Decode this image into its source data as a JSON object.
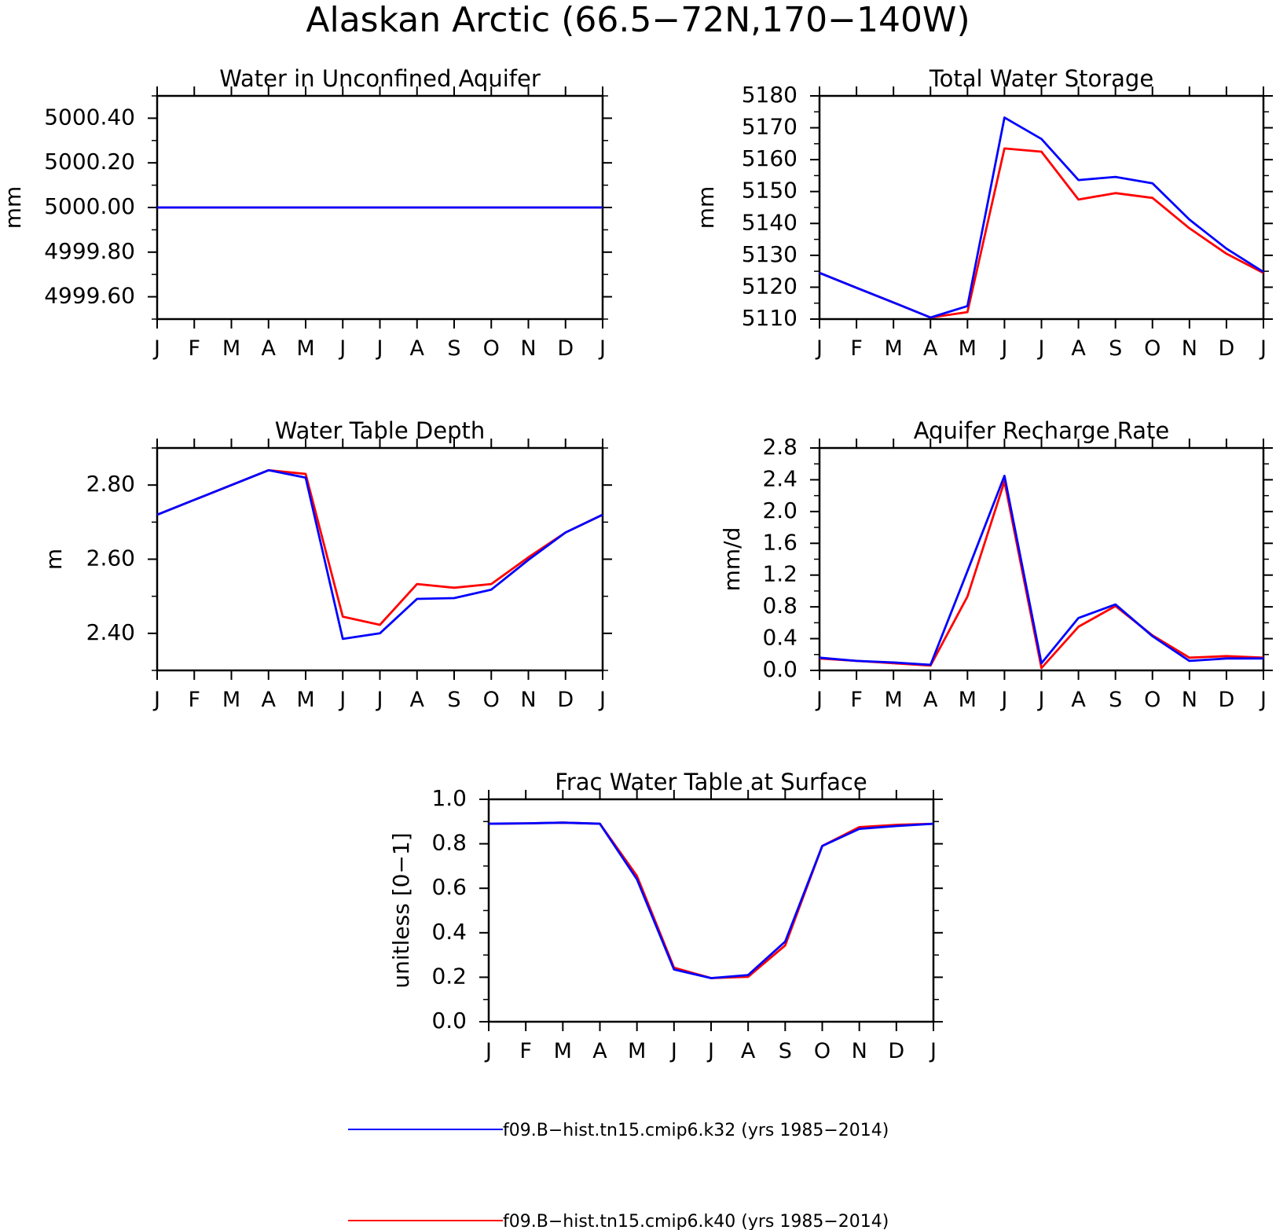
{
  "figure": {
    "title": "Alaskan Arctic (66.5−72N,170−140W)"
  },
  "legend": [
    {
      "label": "f09.B−hist.tn15.cmip6.k32 (yrs 1985−2014)",
      "color": "#0000ff"
    },
    {
      "label": "f09.B−hist.tn15.cmip6.k40 (yrs 1985−2014)",
      "color": "#ff0000"
    }
  ],
  "chart_data": [
    {
      "type": "line",
      "title": "Water in Unconfined Aquifer",
      "ylabel": "mm",
      "xlabel": "",
      "categories": [
        "J",
        "F",
        "M",
        "A",
        "M",
        "J",
        "J",
        "A",
        "S",
        "O",
        "N",
        "D",
        "J"
      ],
      "ylim": [
        4999.5,
        5000.5
      ],
      "yticks": [
        4999.6,
        4999.8,
        5000.0,
        5000.2,
        5000.4
      ],
      "ytick_labels": [
        "4999.60",
        "4999.80",
        "5000.00",
        "5000.20",
        "5000.40"
      ],
      "series": [
        {
          "name": "f09.B−hist.tn15.cmip6.k40 (yrs 1985−2014)",
          "color": "#ff0000",
          "values": [
            5000,
            5000,
            5000,
            5000,
            5000,
            5000,
            5000,
            5000,
            5000,
            5000,
            5000,
            5000,
            5000
          ]
        },
        {
          "name": "f09.B−hist.tn15.cmip6.k32 (yrs 1985−2014)",
          "color": "#0000ff",
          "values": [
            5000,
            5000,
            5000,
            5000,
            5000,
            5000,
            5000,
            5000,
            5000,
            5000,
            5000,
            5000,
            5000
          ]
        }
      ]
    },
    {
      "type": "line",
      "title": "Total Water Storage",
      "ylabel": "mm",
      "xlabel": "",
      "categories": [
        "J",
        "F",
        "M",
        "A",
        "M",
        "J",
        "J",
        "A",
        "S",
        "O",
        "N",
        "D",
        "J"
      ],
      "ylim": [
        5110,
        5180
      ],
      "yticks": [
        5110,
        5120,
        5130,
        5140,
        5150,
        5160,
        5170,
        5180
      ],
      "ytick_labels": [
        "5110",
        "5120",
        "5130",
        "5140",
        "5150",
        "5160",
        "5170",
        "5180"
      ],
      "series": [
        {
          "name": "f09.B−hist.tn15.cmip6.k40 (yrs 1985−2014)",
          "color": "#ff0000",
          "values": [
            5124.5,
            5119.8,
            5115.2,
            5110.5,
            5112.2,
            5163.5,
            5162.5,
            5147.5,
            5149.5,
            5148,
            5138.5,
            5130.5,
            5124.5
          ]
        },
        {
          "name": "f09.B−hist.tn15.cmip6.k32 (yrs 1985−2014)",
          "color": "#0000ff",
          "values": [
            5124.5,
            5119.8,
            5115.2,
            5110.5,
            5114.1,
            5173.2,
            5166.5,
            5153.6,
            5154.6,
            5152.6,
            5141.2,
            5132.1,
            5124.8
          ]
        }
      ]
    },
    {
      "type": "line",
      "title": "Water Table Depth",
      "ylabel": "m",
      "xlabel": "",
      "categories": [
        "J",
        "F",
        "M",
        "A",
        "M",
        "J",
        "J",
        "A",
        "S",
        "O",
        "N",
        "D",
        "J"
      ],
      "ylim": [
        2.3,
        2.9
      ],
      "yticks": [
        2.4,
        2.6,
        2.8
      ],
      "ytick_labels": [
        "2.40",
        "2.60",
        "2.80"
      ],
      "series": [
        {
          "name": "f09.B−hist.tn15.cmip6.k40 (yrs 1985−2014)",
          "color": "#ff0000",
          "values": [
            2.72,
            2.76,
            2.8,
            2.84,
            2.83,
            2.445,
            2.423,
            2.533,
            2.523,
            2.533,
            2.605,
            2.672,
            2.72
          ]
        },
        {
          "name": "f09.B−hist.tn15.cmip6.k32 (yrs 1985−2014)",
          "color": "#0000ff",
          "values": [
            2.72,
            2.76,
            2.8,
            2.84,
            2.82,
            2.385,
            2.4,
            2.493,
            2.495,
            2.518,
            2.598,
            2.672,
            2.72
          ]
        }
      ]
    },
    {
      "type": "line",
      "title": "Aquifer Recharge Rate",
      "ylabel": "mm/d",
      "xlabel": "",
      "categories": [
        "J",
        "F",
        "M",
        "A",
        "M",
        "J",
        "J",
        "A",
        "S",
        "O",
        "N",
        "D",
        "J"
      ],
      "ylim": [
        0.0,
        2.8
      ],
      "yticks": [
        0.0,
        0.4,
        0.8,
        1.2,
        1.6,
        2.0,
        2.4,
        2.8
      ],
      "ytick_labels": [
        "0.0",
        "0.4",
        "0.8",
        "1.2",
        "1.6",
        "2.0",
        "2.4",
        "2.8"
      ],
      "series": [
        {
          "name": "f09.B−hist.tn15.cmip6.k40 (yrs 1985−2014)",
          "color": "#ff0000",
          "values": [
            0.15,
            0.12,
            0.09,
            0.06,
            0.93,
            2.38,
            0.03,
            0.55,
            0.81,
            0.44,
            0.16,
            0.18,
            0.16
          ]
        },
        {
          "name": "f09.B−hist.tn15.cmip6.k32 (yrs 1985−2014)",
          "color": "#0000ff",
          "values": [
            0.16,
            0.12,
            0.1,
            0.07,
            1.25,
            2.45,
            0.09,
            0.66,
            0.83,
            0.43,
            0.12,
            0.15,
            0.15
          ]
        }
      ]
    },
    {
      "type": "line",
      "title": "Frac Water Table at Surface",
      "ylabel": "unitless [0−1]",
      "xlabel": "",
      "categories": [
        "J",
        "F",
        "M",
        "A",
        "M",
        "J",
        "J",
        "A",
        "S",
        "O",
        "N",
        "D",
        "J"
      ],
      "ylim": [
        0.0,
        1.0
      ],
      "yticks": [
        0.0,
        0.2,
        0.4,
        0.6,
        0.8,
        1.0
      ],
      "ytick_labels": [
        "0.0",
        "0.2",
        "0.4",
        "0.6",
        "0.8",
        "1.0"
      ],
      "series": [
        {
          "name": "f09.B−hist.tn15.cmip6.k40 (yrs 1985−2014)",
          "color": "#ff0000",
          "values": [
            0.89,
            0.892,
            0.895,
            0.89,
            0.655,
            0.243,
            0.196,
            0.202,
            0.343,
            0.79,
            0.875,
            0.885,
            0.89
          ]
        },
        {
          "name": "f09.B−hist.tn15.cmip6.k32 (yrs 1985−2014)",
          "color": "#0000ff",
          "values": [
            0.89,
            0.892,
            0.895,
            0.89,
            0.64,
            0.235,
            0.196,
            0.21,
            0.36,
            0.79,
            0.867,
            0.88,
            0.89
          ]
        }
      ]
    }
  ]
}
